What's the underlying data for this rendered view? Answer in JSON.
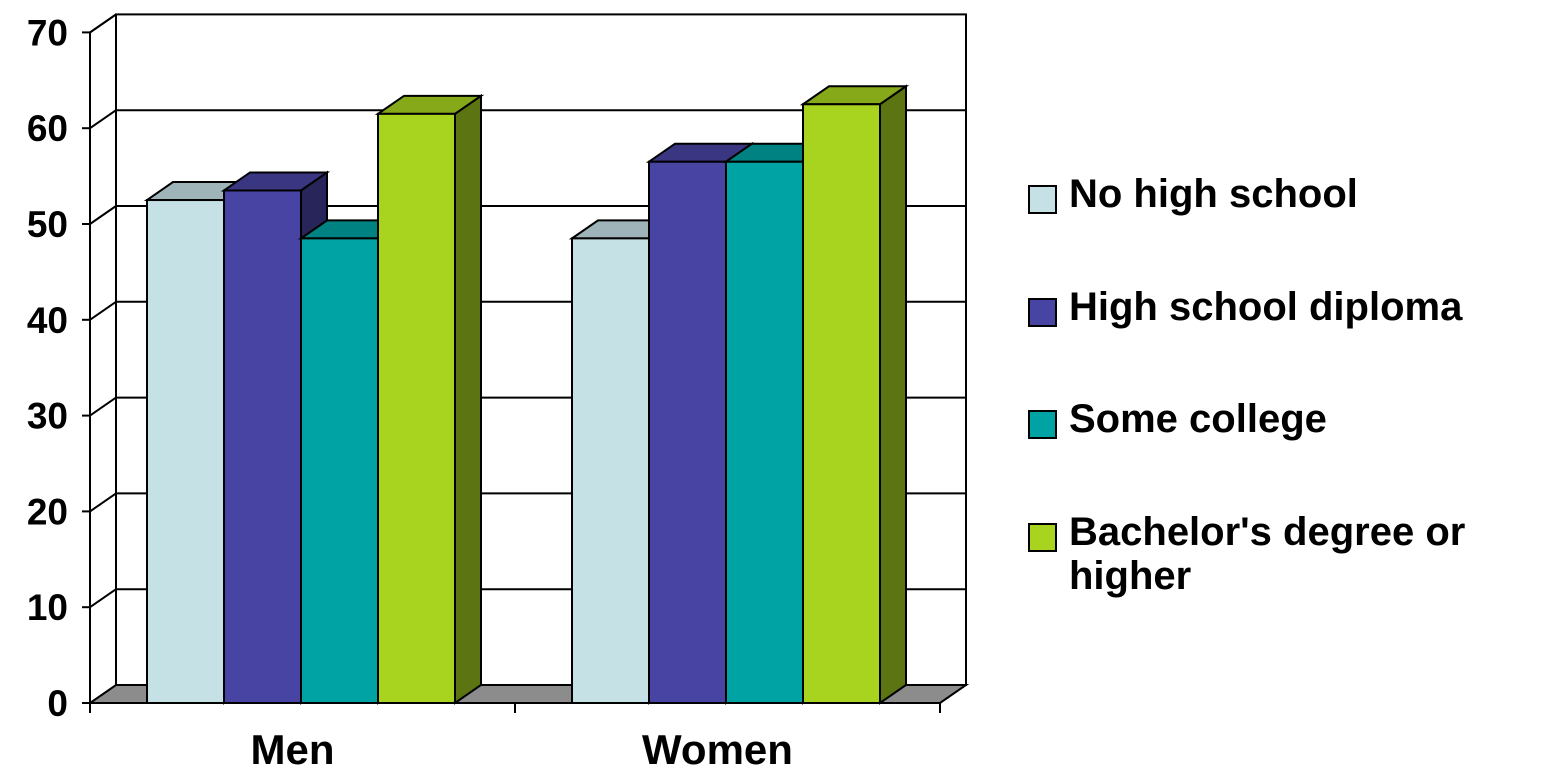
{
  "chart_data": {
    "type": "bar",
    "categories": [
      "Men",
      "Women"
    ],
    "series": [
      {
        "name": "No high school",
        "values": [
          52.5,
          48.5
        ],
        "color": "#c5e1e6"
      },
      {
        "name": "High school diploma",
        "values": [
          53.5,
          56.5
        ],
        "color": "#4844a3"
      },
      {
        "name": "Some college",
        "values": [
          48.5,
          56.5
        ],
        "color": "#00a3a3"
      },
      {
        "name": "Bachelor's degree or higher",
        "values": [
          61.5,
          62.5
        ],
        "color": "#a8d31f"
      }
    ],
    "yticks": [
      "0",
      "10",
      "20",
      "30",
      "40",
      "50",
      "60",
      "70"
    ],
    "ylim": [
      0,
      70
    ],
    "grid": true,
    "legend_position": "right",
    "title": "",
    "xlabel": "",
    "ylabel": ""
  }
}
